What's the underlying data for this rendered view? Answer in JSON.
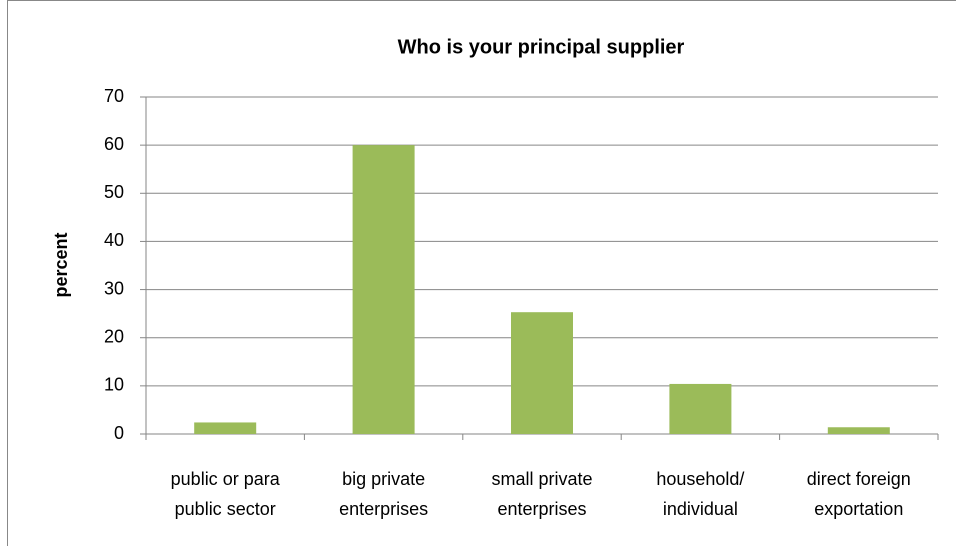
{
  "chart_data": {
    "type": "bar",
    "title": "Who is your principal supplier",
    "y_label": "percent",
    "categories": [
      [
        "public or para",
        "public sector"
      ],
      [
        "big private",
        "enterprises"
      ],
      [
        "small private",
        "enterprises"
      ],
      [
        "household/",
        "individual"
      ],
      [
        "direct foreign",
        "exportation"
      ]
    ],
    "values": [
      2.4,
      60,
      25.3,
      10.4,
      1.4
    ],
    "color": "#9bbb59",
    "ylim": [
      0,
      70
    ],
    "yticks": [
      0,
      10,
      20,
      30,
      40,
      50,
      60,
      70
    ],
    "grid": true
  }
}
